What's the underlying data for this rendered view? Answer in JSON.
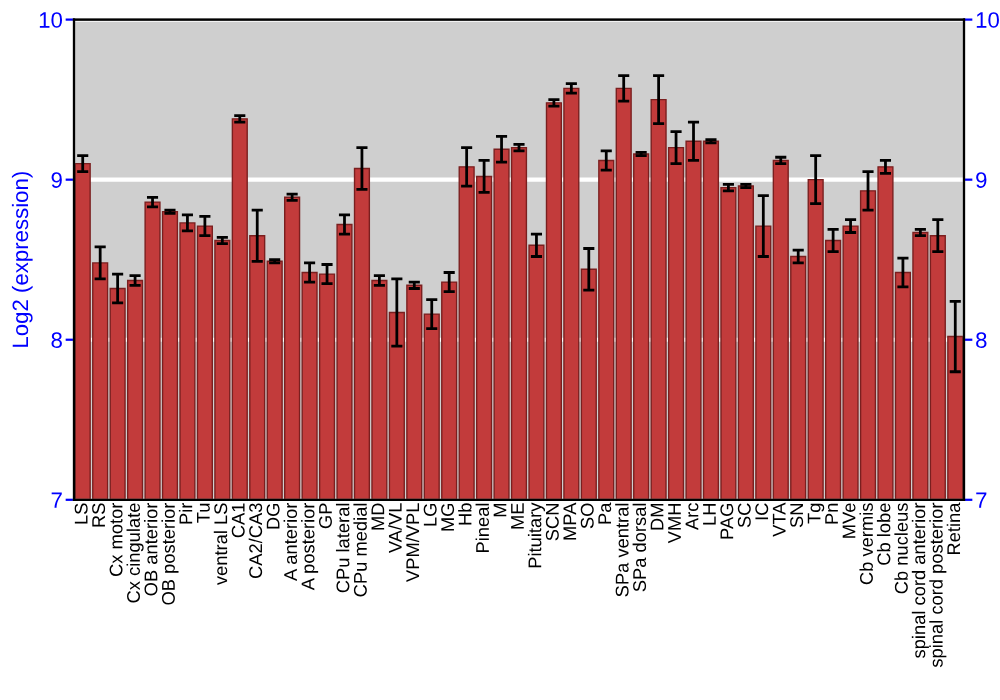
{
  "chart_data": {
    "type": "bar",
    "ylabel": "Log2 (expression)",
    "categories": [
      "LS",
      "RS",
      "Cx motor",
      "Cx cingulate",
      "OB anterior",
      "OB posterior",
      "Pir",
      "Tu",
      "ventral LS",
      "CA1",
      "CA2/CA3",
      "DG",
      "A anterior",
      "A posterior",
      "GP",
      "CPu lateral",
      "CPu medial",
      "MD",
      "VA/VL",
      "VPM/VPL",
      "LG",
      "MG",
      "Hb",
      "Pineal",
      "M",
      "ME",
      "Pituitary",
      "SCN",
      "MPA",
      "SO",
      "Pa",
      "SPa ventral",
      "SPa dorsal",
      "DM",
      "VMH",
      "Arc",
      "LH",
      "PAG",
      "SC",
      "IC",
      "VTA",
      "SN",
      "Tg",
      "Pn",
      "MVe",
      "Cb vermis",
      "Cb lobe",
      "Cb nucleus",
      "spinal cord anterior",
      "spinal cord posterior",
      "Retina"
    ],
    "values": [
      9.1,
      8.48,
      8.32,
      8.37,
      8.86,
      8.8,
      8.73,
      8.71,
      8.62,
      9.38,
      8.65,
      8.49,
      8.89,
      8.42,
      8.41,
      8.72,
      9.07,
      8.37,
      8.17,
      8.34,
      8.16,
      8.36,
      9.08,
      9.02,
      9.19,
      9.2,
      8.59,
      9.48,
      9.57,
      8.44,
      9.12,
      9.57,
      9.16,
      9.5,
      9.2,
      9.24,
      9.24,
      8.95,
      8.96,
      8.71,
      9.12,
      8.52,
      9.0,
      8.62,
      8.71,
      8.93,
      9.08,
      8.42,
      8.67,
      8.65,
      8.02
    ],
    "errors": [
      0.05,
      0.1,
      0.09,
      0.03,
      0.03,
      0.01,
      0.05,
      0.06,
      0.02,
      0.02,
      0.16,
      0.01,
      0.02,
      0.06,
      0.06,
      0.06,
      0.13,
      0.03,
      0.21,
      0.02,
      0.09,
      0.06,
      0.12,
      0.1,
      0.08,
      0.02,
      0.07,
      0.02,
      0.03,
      0.13,
      0.06,
      0.08,
      0.01,
      0.15,
      0.1,
      0.12,
      0.01,
      0.02,
      0.01,
      0.19,
      0.02,
      0.04,
      0.15,
      0.07,
      0.04,
      0.12,
      0.04,
      0.09,
      0.02,
      0.1,
      0.22
    ],
    "color": "#c23b3b",
    "ylim": [
      7,
      10
    ],
    "yticks": [
      7,
      8,
      9,
      10
    ],
    "y2lim": [
      7,
      10
    ],
    "y2ticks": [
      7,
      8,
      9,
      10
    ],
    "grid": "y"
  }
}
